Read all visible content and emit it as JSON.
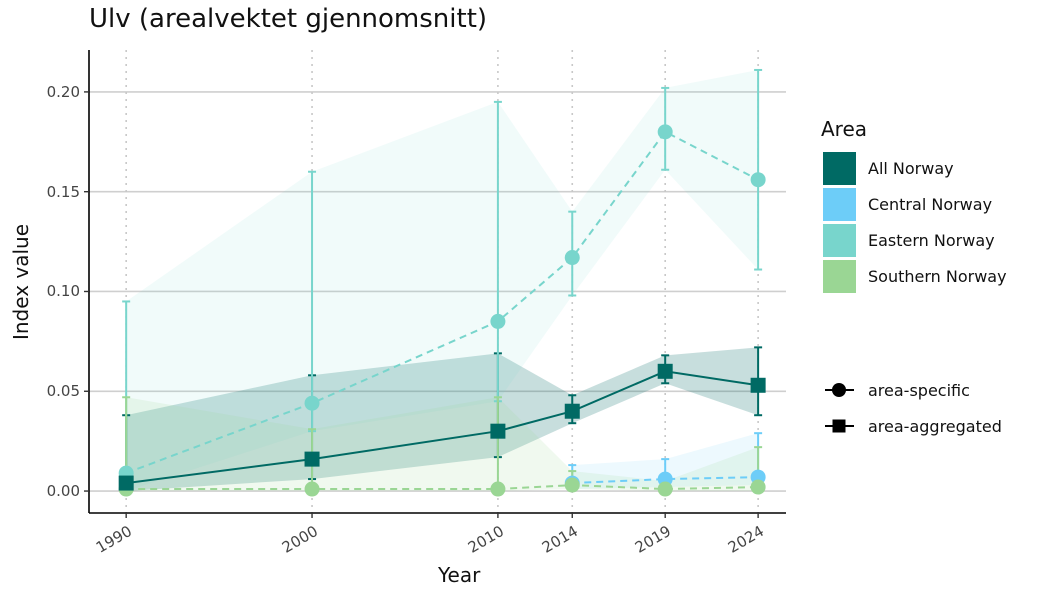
{
  "chart_data": {
    "type": "line",
    "title": "Ulv (arealvektet gjennomsnitt)",
    "xlabel": "Year",
    "ylabel": "Index value",
    "x": [
      1990,
      2000,
      2010,
      2014,
      2019,
      2024
    ],
    "x_tick_labels": [
      "1990",
      "2000",
      "2010",
      "2014",
      "2019",
      "2024"
    ],
    "y_tick_labels": [
      "0.00",
      "0.05",
      "0.10",
      "0.15",
      "0.20"
    ],
    "ylim": [
      -0.011,
      0.221
    ],
    "xlim": [
      1988,
      2025.5
    ],
    "grid": "horizontal major lines; dotted vertical lines at data years",
    "legend_title": "Area",
    "legend_placement": "right",
    "series": [
      {
        "name": "All Norway",
        "color": "#006a64",
        "marker": "square",
        "line": "solid",
        "points": [
          {
            "x": 1990,
            "y": 0.004,
            "lo": 0.0,
            "hi": 0.038
          },
          {
            "x": 2000,
            "y": 0.016,
            "lo": 0.006,
            "hi": 0.058
          },
          {
            "x": 2010,
            "y": 0.03,
            "lo": 0.017,
            "hi": 0.069
          },
          {
            "x": 2014,
            "y": 0.04,
            "lo": 0.034,
            "hi": 0.048
          },
          {
            "x": 2019,
            "y": 0.06,
            "lo": 0.054,
            "hi": 0.068
          },
          {
            "x": 2024,
            "y": 0.053,
            "lo": 0.038,
            "hi": 0.072
          }
        ]
      },
      {
        "name": "Central Norway",
        "color": "#6dcdf8",
        "marker": "circle",
        "line": "dashed",
        "points": [
          {
            "x": 2014,
            "y": 0.004,
            "lo": 0.001,
            "hi": 0.013
          },
          {
            "x": 2019,
            "y": 0.006,
            "lo": 0.002,
            "hi": 0.016
          },
          {
            "x": 2024,
            "y": 0.007,
            "lo": 0.003,
            "hi": 0.029
          }
        ]
      },
      {
        "name": "Eastern Norway",
        "color": "#78d5cc",
        "marker": "circle",
        "line": "dashed",
        "points": [
          {
            "x": 1990,
            "y": 0.009,
            "lo": 0.0,
            "hi": 0.095
          },
          {
            "x": 2000,
            "y": 0.044,
            "lo": 0.03,
            "hi": 0.16
          },
          {
            "x": 2010,
            "y": 0.085,
            "lo": 0.045,
            "hi": 0.195
          },
          {
            "x": 2014,
            "y": 0.117,
            "lo": 0.098,
            "hi": 0.14
          },
          {
            "x": 2019,
            "y": 0.18,
            "lo": 0.161,
            "hi": 0.202
          },
          {
            "x": 2024,
            "y": 0.156,
            "lo": 0.111,
            "hi": 0.211
          }
        ]
      },
      {
        "name": "Southern Norway",
        "color": "#9ad694",
        "marker": "circle",
        "line": "dashed",
        "points": [
          {
            "x": 1990,
            "y": 0.001,
            "lo": 0.0,
            "hi": 0.047
          },
          {
            "x": 2000,
            "y": 0.001,
            "lo": 0.0,
            "hi": 0.031
          },
          {
            "x": 2010,
            "y": 0.001,
            "lo": 0.0,
            "hi": 0.047
          },
          {
            "x": 2014,
            "y": 0.003,
            "lo": 0.001,
            "hi": 0.01
          },
          {
            "x": 2019,
            "y": 0.001,
            "lo": 0.0,
            "hi": 0.005
          },
          {
            "x": 2024,
            "y": 0.002,
            "lo": 0.0,
            "hi": 0.022
          }
        ]
      }
    ],
    "shape_legend": [
      {
        "label": "area-specific",
        "marker": "circle"
      },
      {
        "label": "area-aggregated",
        "marker": "square"
      }
    ]
  }
}
